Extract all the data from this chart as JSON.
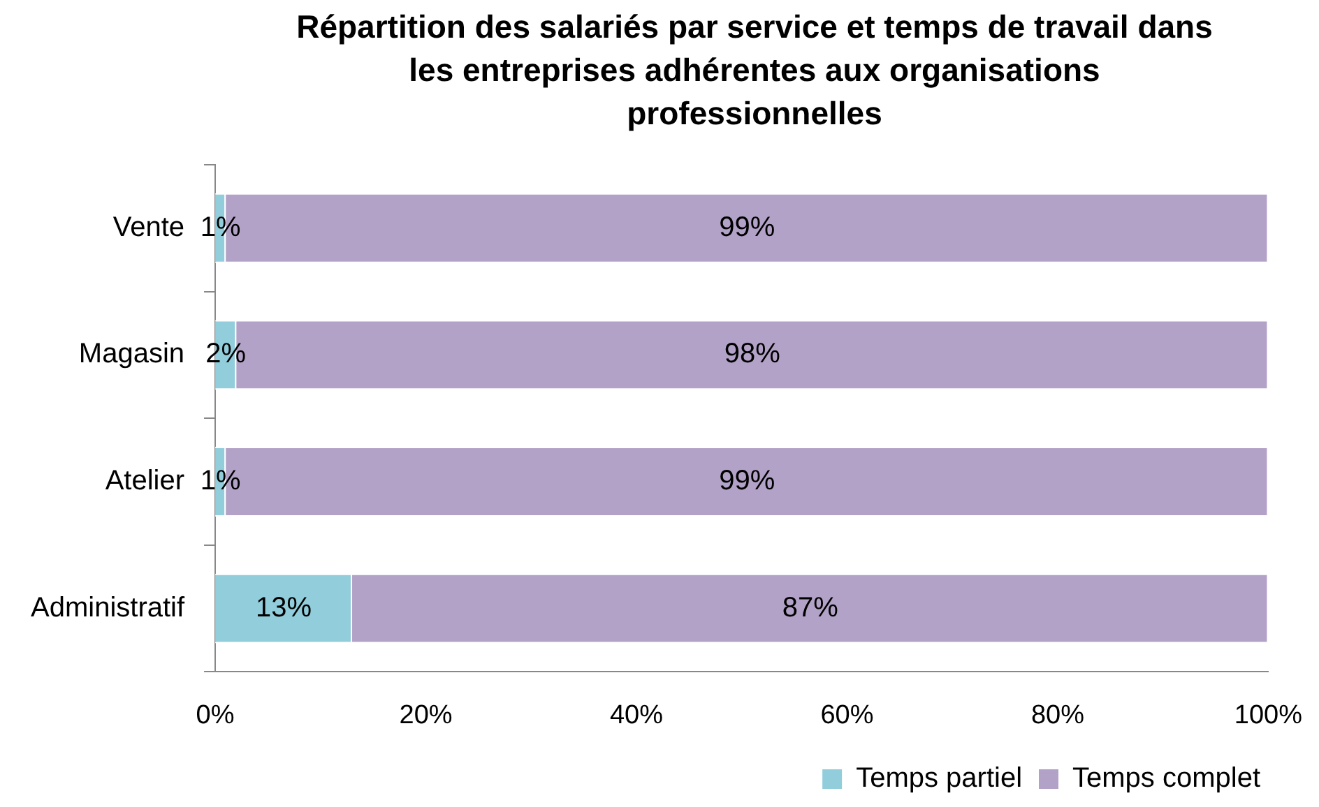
{
  "chart_data": {
    "type": "bar",
    "orientation": "horizontal",
    "stacked": true,
    "title": "Répartition des salariés par service et temps de travail dans les entreprises adhérentes aux organisations professionnelles",
    "categories": [
      "Vente",
      "Magasin",
      "Atelier",
      "Administratif"
    ],
    "series": [
      {
        "name": "Temps partiel",
        "color": "#92cddc",
        "values": [
          1,
          2,
          1,
          13
        ],
        "value_labels": [
          "1%",
          "2%",
          "1%",
          "13%"
        ]
      },
      {
        "name": "Temps complet",
        "color": "#b3a2c7",
        "values": [
          99,
          98,
          99,
          87
        ],
        "value_labels": [
          "99%",
          "98%",
          "99%",
          "87%"
        ]
      }
    ],
    "xlim": [
      0,
      100
    ],
    "xticks": [
      {
        "value": 0,
        "label": "0%"
      },
      {
        "value": 20,
        "label": "20%"
      },
      {
        "value": 40,
        "label": "40%"
      },
      {
        "value": 60,
        "label": "60%"
      },
      {
        "value": 80,
        "label": "80%"
      },
      {
        "value": 100,
        "label": "100%"
      }
    ],
    "grid": false,
    "legend": "bottom right"
  }
}
